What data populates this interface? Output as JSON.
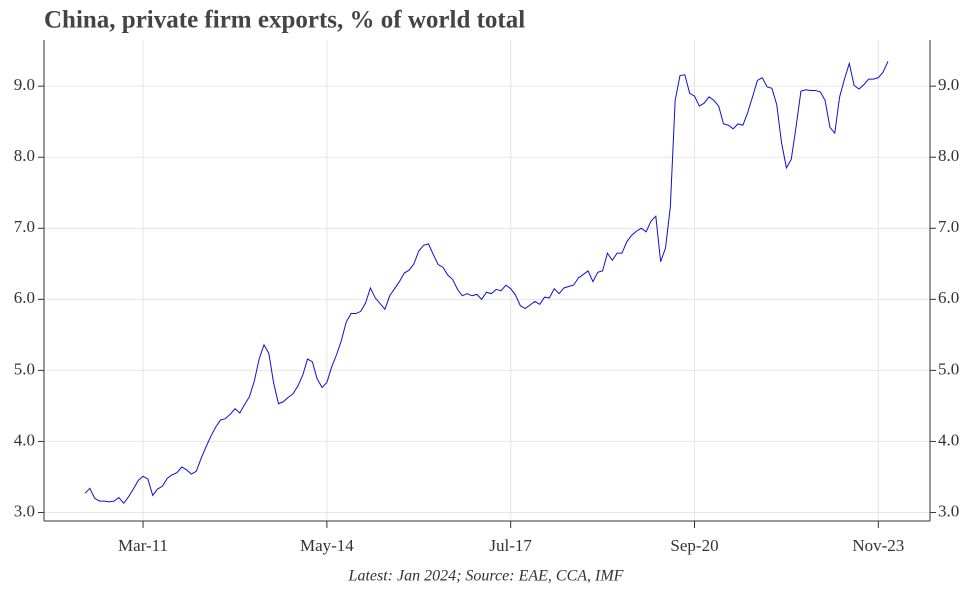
{
  "chart_data": {
    "type": "line",
    "title": "China, private firm exports, % of world total",
    "note": "Latest: Jan 2024; Source: EAE, CCA, IMF",
    "color": "#1010d0",
    "grid": true,
    "categories": [
      "Mar-10",
      "Apr-10",
      "May-10",
      "Jun-10",
      "Jul-10",
      "Aug-10",
      "Sep-10",
      "Oct-10",
      "Nov-10",
      "Dec-10",
      "Jan-11",
      "Feb-11",
      "Mar-11",
      "Apr-11",
      "May-11",
      "Jun-11",
      "Jul-11",
      "Aug-11",
      "Sep-11",
      "Oct-11",
      "Nov-11",
      "Dec-11",
      "Jan-12",
      "Feb-12",
      "Mar-12",
      "Apr-12",
      "May-12",
      "Jun-12",
      "Jul-12",
      "Aug-12",
      "Sep-12",
      "Oct-12",
      "Nov-12",
      "Dec-12",
      "Jan-13",
      "Feb-13",
      "Mar-13",
      "Apr-13",
      "May-13",
      "Jun-13",
      "Jul-13",
      "Aug-13",
      "Sep-13",
      "Oct-13",
      "Nov-13",
      "Dec-13",
      "Jan-14",
      "Feb-14",
      "Mar-14",
      "Apr-14",
      "May-14",
      "Jun-14",
      "Jul-14",
      "Aug-14",
      "Sep-14",
      "Oct-14",
      "Nov-14",
      "Dec-14",
      "Jan-15",
      "Feb-15",
      "Mar-15",
      "Apr-15",
      "May-15",
      "Jun-15",
      "Jul-15",
      "Aug-15",
      "Sep-15",
      "Oct-15",
      "Nov-15",
      "Dec-15",
      "Jan-16",
      "Feb-16",
      "Mar-16",
      "Apr-16",
      "May-16",
      "Jun-16",
      "Jul-16",
      "Aug-16",
      "Sep-16",
      "Oct-16",
      "Nov-16",
      "Dec-16",
      "Jan-17",
      "Feb-17",
      "Mar-17",
      "Apr-17",
      "May-17",
      "Jun-17",
      "Jul-17",
      "Aug-17",
      "Sep-17",
      "Oct-17",
      "Nov-17",
      "Dec-17",
      "Jan-18",
      "Feb-18",
      "Mar-18",
      "Apr-18",
      "May-18",
      "Jun-18",
      "Jul-18",
      "Aug-18",
      "Sep-18",
      "Oct-18",
      "Nov-18",
      "Dec-18",
      "Jan-19",
      "Feb-19",
      "Mar-19",
      "Apr-19",
      "May-19",
      "Jun-19",
      "Jul-19",
      "Aug-19",
      "Sep-19",
      "Oct-19",
      "Nov-19",
      "Dec-19",
      "Jan-20",
      "Feb-20",
      "Mar-20",
      "Apr-20",
      "May-20",
      "Jun-20",
      "Jul-20",
      "Aug-20",
      "Sep-20",
      "Oct-20",
      "Nov-20",
      "Dec-20",
      "Jan-21",
      "Feb-21",
      "Mar-21",
      "Apr-21",
      "May-21",
      "Jun-21",
      "Jul-21",
      "Aug-21",
      "Sep-21",
      "Oct-21",
      "Nov-21",
      "Dec-21",
      "Jan-22",
      "Feb-22",
      "Mar-22",
      "Apr-22",
      "May-22",
      "Jun-22",
      "Jul-22",
      "Aug-22",
      "Sep-22",
      "Oct-22",
      "Nov-22",
      "Dec-22",
      "Jan-23",
      "Feb-23",
      "Mar-23",
      "Apr-23",
      "May-23",
      "Jun-23",
      "Jul-23",
      "Aug-23",
      "Sep-23",
      "Oct-23",
      "Nov-23",
      "Dec-23",
      "Jan-24"
    ],
    "values": [
      3.27,
      3.34,
      3.2,
      3.16,
      3.16,
      3.15,
      3.16,
      3.21,
      3.13,
      3.22,
      3.33,
      3.45,
      3.51,
      3.47,
      3.24,
      3.33,
      3.37,
      3.48,
      3.53,
      3.56,
      3.64,
      3.6,
      3.54,
      3.58,
      3.76,
      3.92,
      4.07,
      4.2,
      4.3,
      4.32,
      4.38,
      4.46,
      4.4,
      4.52,
      4.63,
      4.85,
      5.16,
      5.36,
      5.24,
      4.82,
      4.53,
      4.56,
      4.62,
      4.67,
      4.78,
      4.93,
      5.16,
      5.12,
      4.88,
      4.76,
      4.83,
      5.05,
      5.22,
      5.42,
      5.68,
      5.8,
      5.8,
      5.83,
      5.95,
      6.16,
      6.02,
      5.94,
      5.86,
      6.05,
      6.15,
      6.25,
      6.37,
      6.41,
      6.5,
      6.68,
      6.76,
      6.78,
      6.63,
      6.49,
      6.45,
      6.34,
      6.28,
      6.14,
      6.05,
      6.08,
      6.05,
      6.07,
      6.0,
      6.1,
      6.08,
      6.14,
      6.12,
      6.2,
      6.15,
      6.06,
      5.91,
      5.87,
      5.92,
      5.97,
      5.93,
      6.03,
      6.02,
      6.15,
      6.08,
      6.16,
      6.18,
      6.2,
      6.3,
      6.35,
      6.4,
      6.25,
      6.38,
      6.4,
      6.65,
      6.55,
      6.65,
      6.65,
      6.81,
      6.9,
      6.96,
      7.0,
      6.95,
      7.1,
      7.17,
      6.53,
      6.72,
      7.3,
      8.8,
      9.15,
      9.16,
      8.9,
      8.86,
      8.72,
      8.76,
      8.85,
      8.8,
      8.72,
      8.47,
      8.45,
      8.4,
      8.47,
      8.45,
      8.63,
      8.85,
      9.08,
      9.12,
      8.99,
      8.97,
      8.74,
      8.2,
      7.85,
      7.97,
      8.43,
      8.93,
      8.95,
      8.94,
      8.94,
      8.92,
      8.8,
      8.42,
      8.34,
      8.85,
      9.1,
      9.32,
      9.01,
      8.96,
      9.02,
      9.1,
      9.1,
      9.12,
      9.2,
      9.35
    ],
    "xticks": [
      "Mar-11",
      "May-14",
      "Jul-17",
      "Sep-20",
      "Nov-23"
    ],
    "ylim": [
      2.88,
      9.65
    ],
    "yticks": [
      {
        "value": 3,
        "label": "3.0"
      },
      {
        "value": 4,
        "label": "4.0"
      },
      {
        "value": 5,
        "label": "5.0"
      },
      {
        "value": 6,
        "label": "6.0"
      },
      {
        "value": 7,
        "label": "7.0"
      },
      {
        "value": 8,
        "label": "8.0"
      },
      {
        "value": 9,
        "label": "9.0"
      }
    ]
  }
}
